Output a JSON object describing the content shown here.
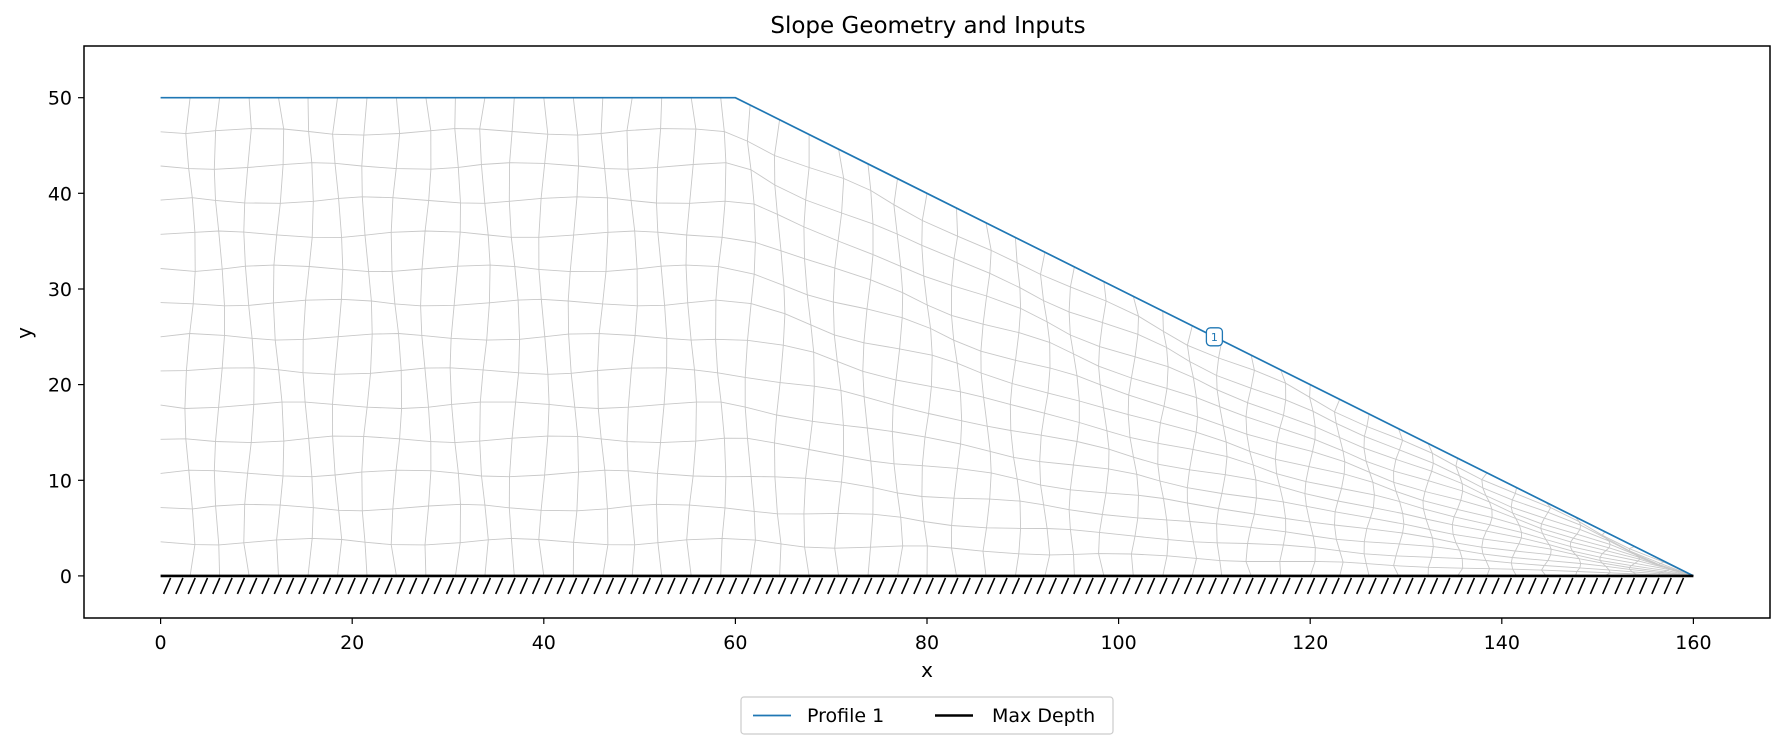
{
  "chart_data": {
    "type": "line",
    "title": "Slope Geometry and Inputs",
    "xlabel": "x",
    "ylabel": "y",
    "xlim": [
      -8,
      168
    ],
    "ylim": [
      -4.4,
      55.4
    ],
    "xticks": [
      0,
      20,
      40,
      60,
      80,
      100,
      120,
      140,
      160
    ],
    "yticks": [
      0,
      10,
      20,
      30,
      40,
      50
    ],
    "grid": false,
    "legend_position": "bottom-center",
    "series": [
      {
        "name": "Profile 1",
        "color": "#1f77b4",
        "x": [
          0,
          60,
          160
        ],
        "y": [
          50,
          50,
          0
        ]
      },
      {
        "name": "Max Depth",
        "color": "#000000",
        "x": [
          0,
          160
        ],
        "y": [
          0,
          0
        ]
      }
    ],
    "annotations": [
      {
        "text": "1",
        "x": 110,
        "y": 25,
        "color": "#1f77b4"
      }
    ],
    "mesh_color": "#c8c8c8"
  }
}
